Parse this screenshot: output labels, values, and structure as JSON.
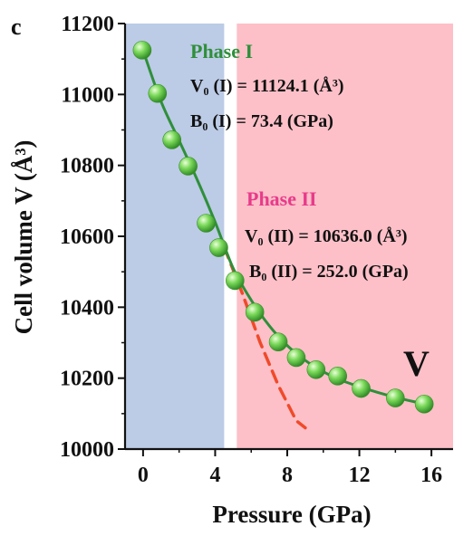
{
  "chart_data": {
    "type": "scatter",
    "panel_label": "c",
    "xlabel": "Pressure (GPa)",
    "ylabel": "Cell volume V (Å³)",
    "xlim": [
      -1,
      17.2
    ],
    "ylim": [
      10000,
      11200
    ],
    "xticks": [
      0,
      4,
      8,
      12,
      16
    ],
    "yticks": [
      10000,
      10200,
      10400,
      10600,
      10800,
      11000,
      11200
    ],
    "grid": false,
    "regions": [
      {
        "name": "Phase I",
        "x_from": -1,
        "x_to": 4.5,
        "color": "#bccbe6"
      },
      {
        "name": "Phase II",
        "x_from": 5.2,
        "x_to": 17.2,
        "color": "#fdc0c8"
      }
    ],
    "series": [
      {
        "kind": "points",
        "color": "#6cd04a",
        "x": [
          -0.05,
          0.8,
          1.6,
          2.5,
          3.5,
          4.2,
          5.1,
          6.2,
          7.5,
          8.5,
          9.6,
          10.8,
          12.1,
          14.0,
          15.6
        ],
        "y": [
          11125,
          11003,
          10872,
          10798,
          10637,
          10568,
          10475,
          10386,
          10302,
          10258,
          10224,
          10206,
          10171,
          10144,
          10127
        ]
      },
      {
        "kind": "fit-line",
        "color": "#2f8f3a",
        "x": [
          0,
          1,
          2,
          3,
          4,
          5,
          6,
          7,
          8,
          9,
          10,
          11,
          12,
          13,
          14,
          15,
          15.6
        ],
        "y": [
          11124,
          10980,
          10870,
          10760,
          10640,
          10510,
          10420,
          10348,
          10292,
          10250,
          10218,
          10194,
          10176,
          10160,
          10146,
          10134,
          10128
        ]
      },
      {
        "kind": "extrapolation",
        "color": "#f04a2a",
        "dashed": true,
        "x": [
          4.5,
          5.5,
          6.5,
          7.5,
          8.5,
          9.0
        ],
        "y": [
          10570,
          10440,
          10300,
          10180,
          10080,
          10060
        ]
      }
    ],
    "annotations": [
      {
        "id": "phase1-title",
        "text": "Phase I",
        "color": "#2f8f3a"
      },
      {
        "id": "phase1-v0",
        "text": "V₀ (I) = 11124.1 (Å³)",
        "color": "#111111"
      },
      {
        "id": "phase1-b0",
        "text": "B₀ (I) = 73.4 (GPa)",
        "color": "#111111"
      },
      {
        "id": "phase2-title",
        "text": "Phase II",
        "color": "#e83a8a"
      },
      {
        "id": "phase2-v0",
        "text": "V₀ (II) = 10636.0 (Å³)",
        "color": "#111111"
      },
      {
        "id": "phase2-b0",
        "text": "B₀ (II) = 252.0 (GPa)",
        "color": "#111111"
      },
      {
        "id": "element-symbol",
        "text": "V",
        "color": "#111111"
      }
    ]
  }
}
